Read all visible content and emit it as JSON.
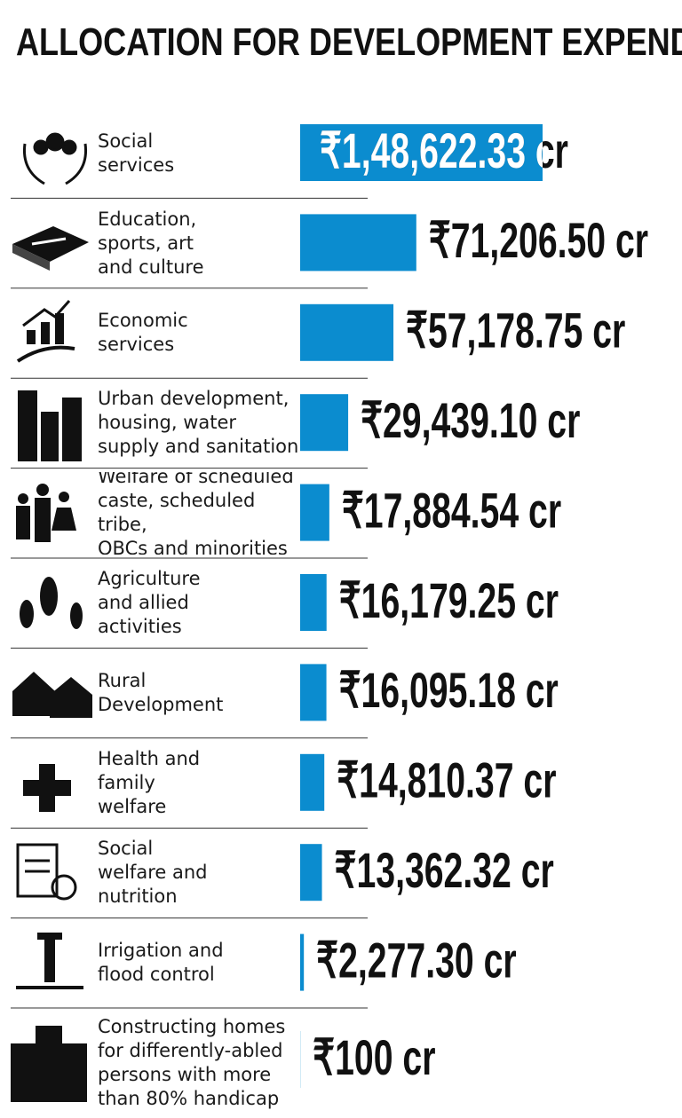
{
  "chart_data": {
    "type": "bar",
    "orientation": "horizontal",
    "title": "ALLOCATION FOR DEVELOPMENT EXPENDITURE",
    "color": "#0b8ccf",
    "categories": [
      "Social\nservices",
      "Education,\nsports, art\nand culture",
      "Economic\nservices",
      "Urban development,\nhousing, water\nsupply and sanitation",
      "Welfare of scheduled\ncaste, scheduled tribe,\nOBCs and minorities",
      "Agriculture\nand allied\nactivities",
      "Rural\nDevelopment",
      "Health and\nfamily\nwelfare",
      "Social\nwelfare and\nnutrition",
      "Irrigation and\nflood control",
      "Constructing homes\nfor differently-abled\npersons with more\nthan 80% handicap"
    ],
    "values": [
      148622.33,
      71206.5,
      57178.75,
      29439.1,
      17884.54,
      16179.25,
      16095.18,
      14810.37,
      13362.32,
      2277.3,
      100
    ],
    "value_labels": [
      "₹1,48,622.33 cr",
      "₹71,206.50 cr",
      "₹57,178.75 cr",
      "₹29,439.10 cr",
      "₹17,884.54 cr",
      "₹16,179.25 cr",
      "₹16,095.18 cr",
      "₹14,810.37 cr",
      "₹13,362.32 cr",
      "₹2,277.30 cr",
      "₹100 cr"
    ]
  }
}
